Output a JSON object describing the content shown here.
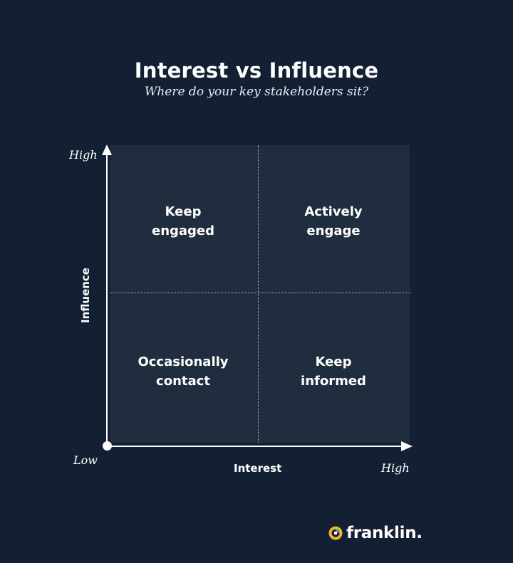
{
  "header": {
    "title": "Interest vs Influence",
    "subtitle": "Where do your key stakeholders sit?"
  },
  "matrix": {
    "quadrants": {
      "top_left": [
        "Keep",
        "engaged"
      ],
      "top_right": [
        "Actively",
        "engage"
      ],
      "bottom_left": [
        "Occasionally",
        "contact"
      ],
      "bottom_right": [
        "Keep",
        "informed"
      ]
    },
    "y_axis": {
      "label": "Influence",
      "high": "High",
      "low": "Low"
    },
    "x_axis": {
      "label": "Interest",
      "high": "High"
    }
  },
  "brand": {
    "name": "franklin",
    "dot": ".",
    "logo_color": "#f2b632",
    "logo_accent": "#4a7bd0"
  },
  "colors": {
    "background": "#132033",
    "plot_background": "#1f2d3e",
    "divider": "#a9b4c1",
    "text": "#ffffff"
  }
}
